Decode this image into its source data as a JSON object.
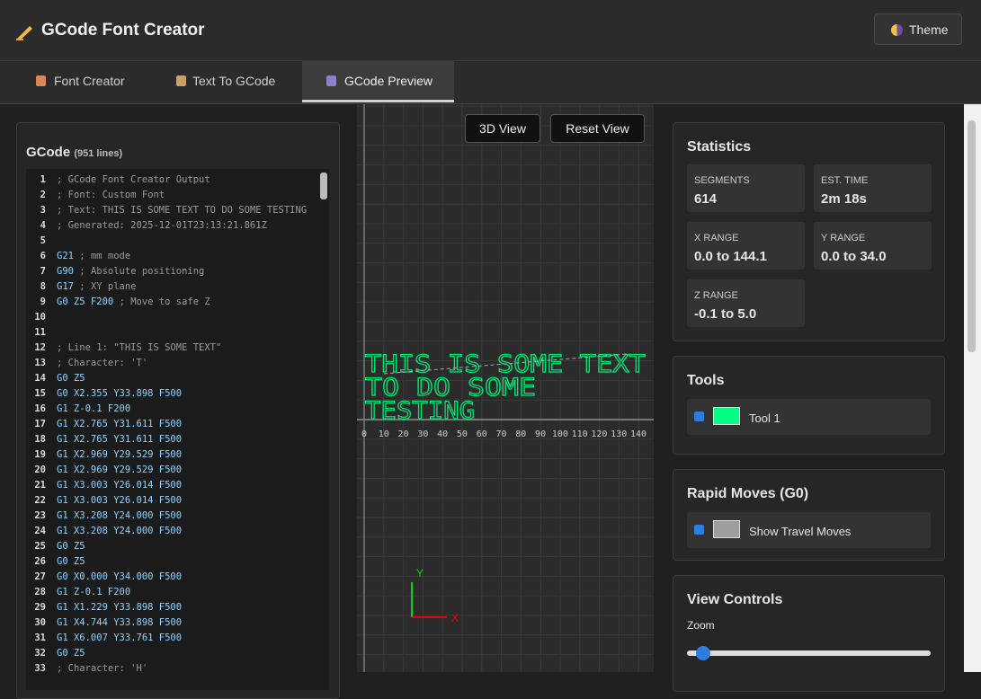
{
  "header": {
    "title": "GCode Font Creator",
    "theme_button": "Theme"
  },
  "tabs": [
    "Font Creator",
    "Text To GCode",
    "GCode Preview"
  ],
  "gcode_panel": {
    "title": "GCode",
    "line_count": "(951 lines)",
    "lines": [
      {
        "n": 1,
        "comment": "; GCode Font Creator Output"
      },
      {
        "n": 2,
        "comment": "; Font: Custom Font"
      },
      {
        "n": 3,
        "comment": "; Text: THIS IS SOME TEXT TO DO SOME TESTING"
      },
      {
        "n": 4,
        "comment": "; Generated: 2025-12-01T23:13:21.861Z"
      },
      {
        "n": 5
      },
      {
        "n": 6,
        "code": "G21",
        "comment": "; mm mode"
      },
      {
        "n": 7,
        "code": "G90",
        "comment": "; Absolute positioning"
      },
      {
        "n": 8,
        "code": "G17",
        "comment": "; XY plane"
      },
      {
        "n": 9,
        "code": "G0 Z5 F200",
        "comment": "; Move to safe Z"
      },
      {
        "n": 10
      },
      {
        "n": 11
      },
      {
        "n": 12,
        "comment": "; Line 1: \"THIS IS SOME TEXT\""
      },
      {
        "n": 13,
        "comment": "; Character: 'T'"
      },
      {
        "n": 14,
        "code": "G0 Z5"
      },
      {
        "n": 15,
        "code": "G0 X2.355 Y33.898 F500"
      },
      {
        "n": 16,
        "code": "G1 Z-0.1 F200"
      },
      {
        "n": 17,
        "code": "G1 X2.765 Y31.611 F500"
      },
      {
        "n": 18,
        "code": "G1 X2.765 Y31.611 F500"
      },
      {
        "n": 19,
        "code": "G1 X2.969 Y29.529 F500"
      },
      {
        "n": 20,
        "code": "G1 X2.969 Y29.529 F500"
      },
      {
        "n": 21,
        "code": "G1 X3.003 Y26.014 F500"
      },
      {
        "n": 22,
        "code": "G1 X3.003 Y26.014 F500"
      },
      {
        "n": 23,
        "code": "G1 X3.208 Y24.000 F500"
      },
      {
        "n": 24,
        "code": "G1 X3.208 Y24.000 F500"
      },
      {
        "n": 25,
        "code": "G0 Z5"
      },
      {
        "n": 26,
        "code": "G0 Z5"
      },
      {
        "n": 27,
        "code": "G0 X0.000 Y34.000 F500"
      },
      {
        "n": 28,
        "code": "G1 Z-0.1 F200"
      },
      {
        "n": 29,
        "code": "G1 X1.229 Y33.898 F500"
      },
      {
        "n": 30,
        "code": "G1 X4.744 Y33.898 F500"
      },
      {
        "n": 31,
        "code": "G1 X6.007 Y33.761 F500"
      },
      {
        "n": 32,
        "code": "G0 Z5"
      },
      {
        "n": 33,
        "comment": "; Character: 'H'"
      }
    ]
  },
  "preview": {
    "buttons": [
      "3D View",
      "Reset View"
    ],
    "text_lines": [
      "THIS IS SOME TEXT",
      "TO DO SOME",
      "TESTING"
    ],
    "text_color": "#00e676",
    "ruler_ticks": [
      0,
      10,
      20,
      30,
      40,
      50,
      60,
      70,
      80,
      90,
      100,
      110,
      120,
      130,
      140
    ],
    "axis_x": "X",
    "axis_y": "Y"
  },
  "statistics": {
    "title": "Statistics",
    "items": [
      {
        "label": "SEGMENTS",
        "value": 614
      },
      {
        "label": "EST. TIME",
        "value": "2m 18s"
      },
      {
        "label": "X RANGE",
        "value": "0.0 to 144.1"
      },
      {
        "label": "Y RANGE",
        "value": "0.0 to 34.0"
      },
      {
        "label": "Z RANGE",
        "value": "-0.1 to 5.0"
      }
    ]
  },
  "tools": {
    "title": "Tools",
    "items": [
      {
        "label": "Tool 1",
        "color": "#00ff80"
      }
    ]
  },
  "rapid_moves": {
    "title": "Rapid Moves (G0)",
    "label": "Show Travel Moves",
    "color": "#9e9e9e"
  },
  "view_controls": {
    "title": "View Controls",
    "zoom_label": "Zoom"
  }
}
